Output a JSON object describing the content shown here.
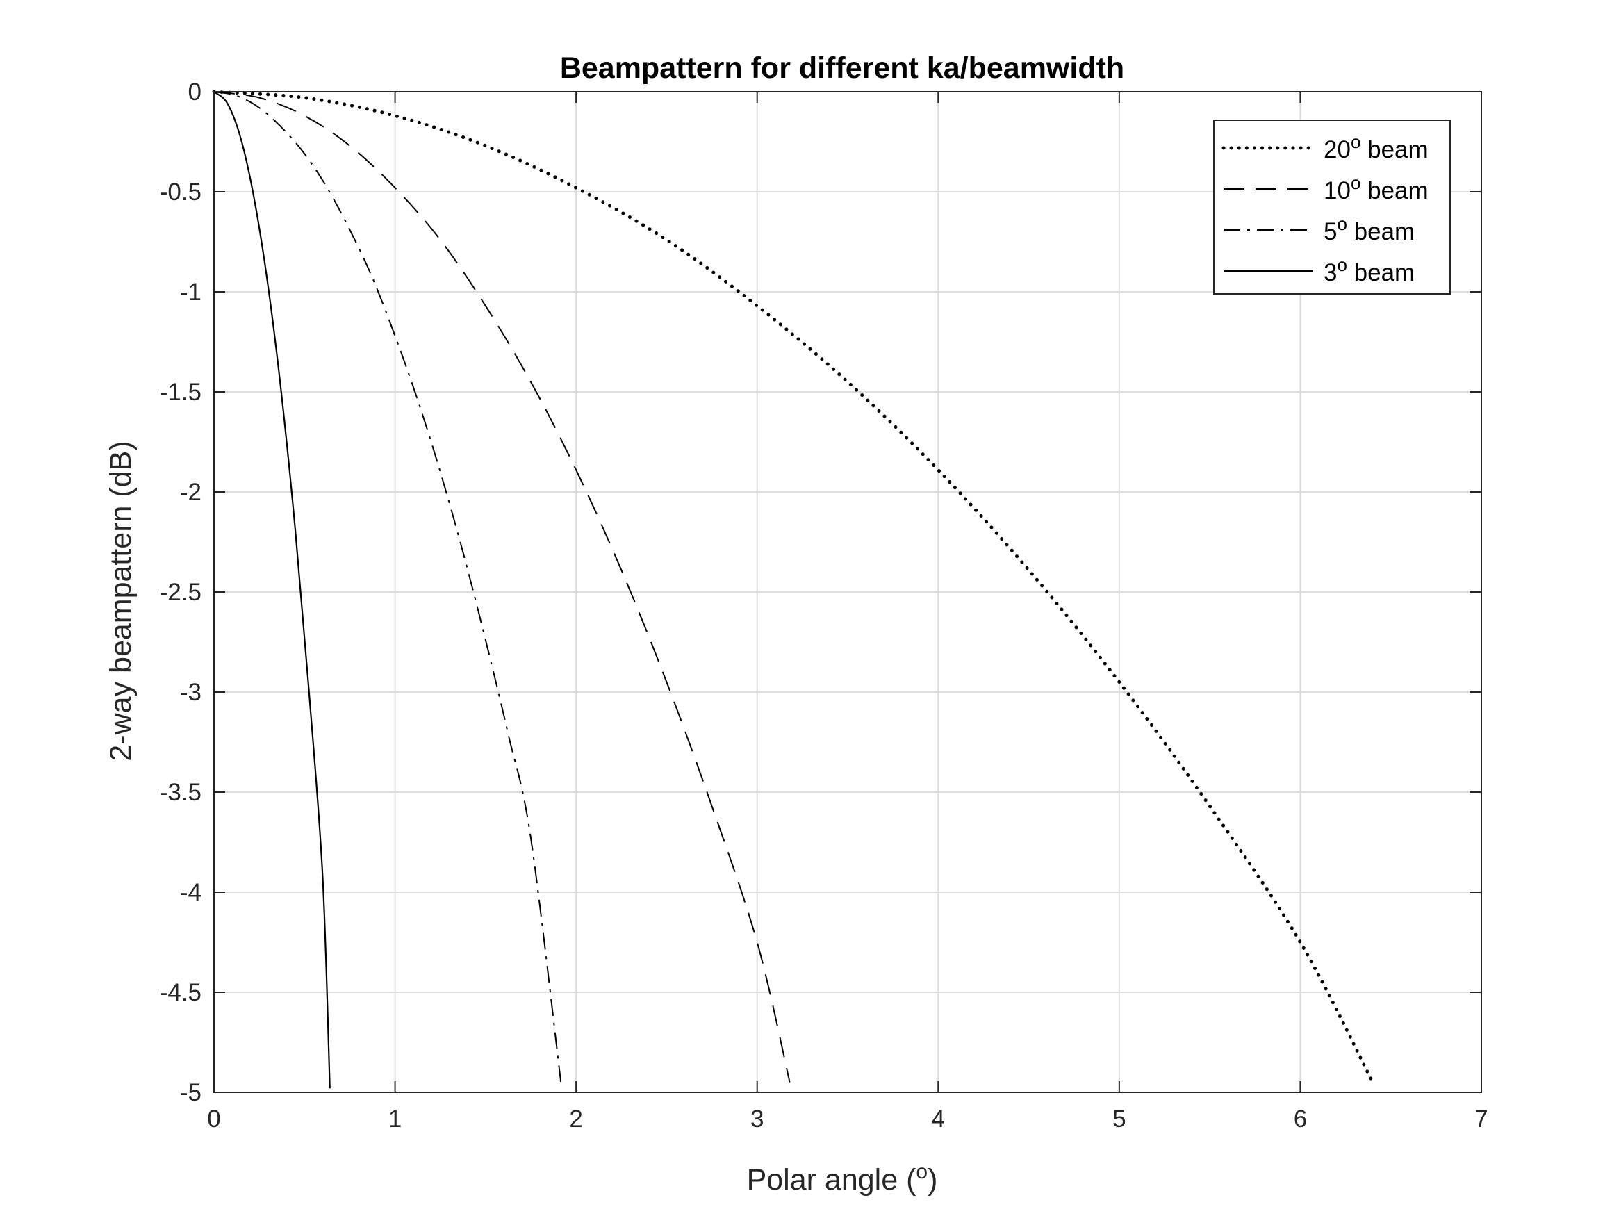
{
  "chart_data": {
    "type": "line",
    "title": "Beampattern for different ka/beamwidth",
    "xlabel": "Polar angle (",
    "xlabel_sup": "o",
    "xlabel_end": ")",
    "ylabel": "2-way beampattern (dB)",
    "xlim": [
      0,
      7
    ],
    "ylim": [
      -5,
      0
    ],
    "xticks": [
      0,
      1,
      2,
      3,
      4,
      5,
      6,
      7
    ],
    "xtick_labels": [
      "0",
      "1",
      "2",
      "3",
      "4",
      "5",
      "6",
      "7"
    ],
    "yticks": [
      0,
      -0.5,
      -1,
      -1.5,
      -2,
      -2.5,
      -3,
      -3.5,
      -4,
      -4.5,
      -5
    ],
    "ytick_labels": [
      "0",
      "-0.5",
      "-1",
      "-1.5",
      "-2",
      "-2.5",
      "-3",
      "-3.5",
      "-4",
      "-4.5",
      "-5"
    ],
    "grid": true,
    "legend_position": "top-right",
    "series": [
      {
        "name": "20",
        "sup": "o",
        "suffix": " beam",
        "style": "dotted",
        "x": [
          0,
          0.5,
          1,
          1.5,
          2,
          2.5,
          3,
          3.5,
          4,
          4.5,
          5,
          5.5,
          6,
          6.4
        ],
        "y": [
          0,
          -0.03,
          -0.12,
          -0.27,
          -0.48,
          -0.74,
          -1.07,
          -1.45,
          -1.89,
          -2.39,
          -2.95,
          -3.57,
          -4.25,
          -4.95
        ]
      },
      {
        "name": "10",
        "sup": "o",
        "suffix": " beam",
        "style": "dashed",
        "x": [
          0,
          0.25,
          0.5,
          0.75,
          1,
          1.25,
          1.5,
          1.75,
          2,
          2.25,
          2.5,
          2.75,
          3,
          3.18
        ],
        "y": [
          0,
          -0.03,
          -0.12,
          -0.27,
          -0.48,
          -0.74,
          -1.07,
          -1.45,
          -1.89,
          -2.39,
          -2.95,
          -3.57,
          -4.25,
          -4.95
        ]
      },
      {
        "name": "5",
        "sup": "o",
        "suffix": " beam",
        "style": "dashdot",
        "x": [
          0,
          0.125,
          0.25,
          0.375,
          0.5,
          0.625,
          0.75,
          0.875,
          1,
          1.125,
          1.25,
          1.375,
          1.5,
          1.625,
          1.75,
          1.92
        ],
        "y": [
          0,
          -0.02,
          -0.08,
          -0.18,
          -0.31,
          -0.48,
          -0.69,
          -0.93,
          -1.22,
          -1.54,
          -1.9,
          -2.3,
          -2.74,
          -3.21,
          -3.73,
          -4.98
        ]
      },
      {
        "name": "3",
        "sup": "o",
        "suffix": " beam",
        "style": "solid",
        "x": [
          0,
          0.075,
          0.15,
          0.225,
          0.3,
          0.375,
          0.45,
          0.525,
          0.6,
          0.64
        ],
        "y": [
          0,
          -0.06,
          -0.24,
          -0.55,
          -0.98,
          -1.53,
          -2.2,
          -3.0,
          -3.92,
          -4.98
        ]
      }
    ]
  }
}
